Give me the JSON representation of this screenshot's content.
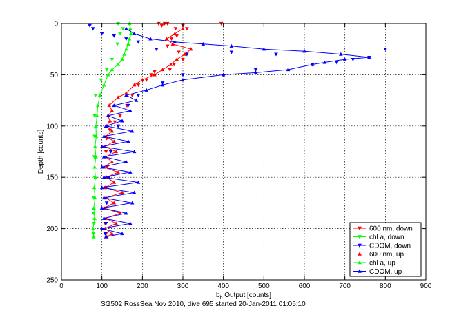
{
  "chart_data": {
    "type": "line",
    "xlabel_main": "b",
    "xlabel_sub": "b",
    "xlabel_rest": " Output [counts]",
    "ylabel": "Depth [counts]",
    "caption": "SG502 RossSea Nov 2010, dive 695 started 20-Jan-2011 01:05:10",
    "xlim": [
      0,
      900
    ],
    "ylim": [
      0,
      250
    ],
    "y_reversed": true,
    "grid": true,
    "legend_position": "bottom-right",
    "xticks": [
      0,
      100,
      200,
      300,
      400,
      500,
      600,
      700,
      800,
      900
    ],
    "yticks": [
      0,
      50,
      100,
      150,
      200,
      250
    ],
    "series": [
      {
        "name": "600 nm, down",
        "color": "#ff0000",
        "marker": "tri-down",
        "connected": false,
        "points": [
          [
            240,
            0
          ],
          [
            262,
            0
          ],
          [
            248,
            2
          ],
          [
            255,
            0
          ],
          [
            282,
            5
          ],
          [
            300,
            2
          ],
          [
            395,
            0
          ],
          [
            310,
            5
          ],
          [
            272,
            15
          ],
          [
            285,
            12
          ],
          [
            262,
            22
          ],
          [
            290,
            28
          ],
          [
            300,
            35
          ],
          [
            278,
            40
          ],
          [
            268,
            45
          ],
          [
            222,
            50
          ],
          [
            230,
            47
          ],
          [
            210,
            55
          ],
          [
            190,
            60
          ],
          [
            175,
            70
          ],
          [
            162,
            80
          ],
          [
            145,
            90
          ],
          [
            132,
            96
          ],
          [
            120,
            104
          ],
          [
            112,
            112
          ],
          [
            110,
            125
          ],
          [
            113,
            140
          ],
          [
            110,
            160
          ],
          [
            108,
            180
          ],
          [
            108,
            195
          ],
          [
            110,
            205
          ]
        ]
      },
      {
        "name": "chl a, down",
        "color": "#00ff00",
        "marker": "tri-down",
        "connected": false,
        "points": [
          [
            140,
            0
          ],
          [
            152,
            5
          ],
          [
            145,
            10
          ],
          [
            138,
            20
          ],
          [
            125,
            35
          ],
          [
            112,
            45
          ],
          [
            98,
            55
          ],
          [
            84,
            70
          ],
          [
            82,
            90
          ],
          [
            82,
            110
          ],
          [
            81,
            130
          ],
          [
            82,
            150
          ],
          [
            80,
            170
          ],
          [
            79,
            185
          ],
          [
            80,
            195
          ],
          [
            79,
            205
          ]
        ]
      },
      {
        "name": "CDOM, down",
        "color": "#0000ff",
        "marker": "tri-down",
        "connected": false,
        "points": [
          [
            70,
            2
          ],
          [
            78,
            5
          ],
          [
            100,
            10
          ],
          [
            130,
            12
          ],
          [
            160,
            15
          ],
          [
            190,
            18
          ],
          [
            235,
            25
          ],
          [
            310,
            30
          ],
          [
            420,
            28
          ],
          [
            530,
            30
          ],
          [
            680,
            38
          ],
          [
            720,
            35
          ],
          [
            760,
            33
          ],
          [
            800,
            25
          ],
          [
            620,
            40
          ],
          [
            480,
            45
          ],
          [
            300,
            50
          ],
          [
            250,
            58
          ],
          [
            190,
            70
          ],
          [
            165,
            80
          ],
          [
            140,
            100
          ],
          [
            122,
            125
          ],
          [
            118,
            150
          ],
          [
            112,
            175
          ],
          [
            110,
            195
          ],
          [
            108,
            205
          ]
        ]
      },
      {
        "name": "600 nm, up",
        "color": "#ff0000",
        "marker": "tri-up",
        "connected": true,
        "points": [
          [
            112,
            208
          ],
          [
            125,
            205
          ],
          [
            108,
            200
          ],
          [
            135,
            195
          ],
          [
            110,
            190
          ],
          [
            145,
            185
          ],
          [
            105,
            180
          ],
          [
            130,
            175
          ],
          [
            110,
            170
          ],
          [
            150,
            165
          ],
          [
            108,
            160
          ],
          [
            130,
            155
          ],
          [
            112,
            150
          ],
          [
            140,
            145
          ],
          [
            105,
            140
          ],
          [
            125,
            135
          ],
          [
            110,
            130
          ],
          [
            135,
            125
          ],
          [
            108,
            120
          ],
          [
            130,
            115
          ],
          [
            110,
            110
          ],
          [
            125,
            105
          ],
          [
            112,
            100
          ],
          [
            120,
            95
          ],
          [
            115,
            90
          ],
          [
            125,
            85
          ],
          [
            118,
            80
          ],
          [
            140,
            72
          ],
          [
            160,
            68
          ],
          [
            180,
            60
          ],
          [
            200,
            55
          ],
          [
            230,
            50
          ],
          [
            250,
            45
          ],
          [
            270,
            40
          ],
          [
            285,
            35
          ],
          [
            305,
            30
          ],
          [
            320,
            25
          ],
          [
            275,
            20
          ],
          [
            260,
            15
          ],
          [
            280,
            10
          ],
          [
            300,
            5
          ]
        ]
      },
      {
        "name": "chl a, up",
        "color": "#00ff00",
        "marker": "tri-up",
        "connected": true,
        "points": [
          [
            80,
            208
          ],
          [
            78,
            200
          ],
          [
            82,
            190
          ],
          [
            80,
            180
          ],
          [
            83,
            170
          ],
          [
            81,
            160
          ],
          [
            84,
            150
          ],
          [
            82,
            140
          ],
          [
            85,
            130
          ],
          [
            83,
            120
          ],
          [
            86,
            110
          ],
          [
            85,
            100
          ],
          [
            88,
            90
          ],
          [
            90,
            80
          ],
          [
            95,
            70
          ],
          [
            105,
            60
          ],
          [
            115,
            50
          ],
          [
            125,
            45
          ],
          [
            140,
            40
          ],
          [
            150,
            35
          ],
          [
            155,
            30
          ],
          [
            160,
            25
          ],
          [
            165,
            20
          ],
          [
            168,
            15
          ],
          [
            172,
            10
          ],
          [
            170,
            5
          ],
          [
            168,
            0
          ]
        ]
      },
      {
        "name": "CDOM, up",
        "color": "#0000ff",
        "marker": "tri-up",
        "connected": true,
        "points": [
          [
            110,
            208
          ],
          [
            150,
            205
          ],
          [
            100,
            200
          ],
          [
            170,
            195
          ],
          [
            105,
            190
          ],
          [
            160,
            185
          ],
          [
            100,
            180
          ],
          [
            175,
            175
          ],
          [
            105,
            170
          ],
          [
            180,
            165
          ],
          [
            100,
            160
          ],
          [
            190,
            155
          ],
          [
            105,
            150
          ],
          [
            170,
            145
          ],
          [
            100,
            140
          ],
          [
            160,
            135
          ],
          [
            105,
            130
          ],
          [
            180,
            125
          ],
          [
            100,
            120
          ],
          [
            165,
            115
          ],
          [
            105,
            110
          ],
          [
            175,
            105
          ],
          [
            110,
            100
          ],
          [
            150,
            95
          ],
          [
            115,
            90
          ],
          [
            170,
            85
          ],
          [
            130,
            80
          ],
          [
            185,
            75
          ],
          [
            160,
            70
          ],
          [
            210,
            65
          ],
          [
            250,
            60
          ],
          [
            300,
            55
          ],
          [
            400,
            50
          ],
          [
            480,
            48
          ],
          [
            560,
            45
          ],
          [
            620,
            40
          ],
          [
            650,
            38
          ],
          [
            700,
            35
          ],
          [
            760,
            33
          ],
          [
            690,
            30
          ],
          [
            600,
            27
          ],
          [
            500,
            25
          ],
          [
            420,
            22
          ],
          [
            350,
            20
          ],
          [
            280,
            18
          ],
          [
            220,
            15
          ],
          [
            180,
            10
          ],
          [
            160,
            5
          ]
        ]
      }
    ]
  }
}
